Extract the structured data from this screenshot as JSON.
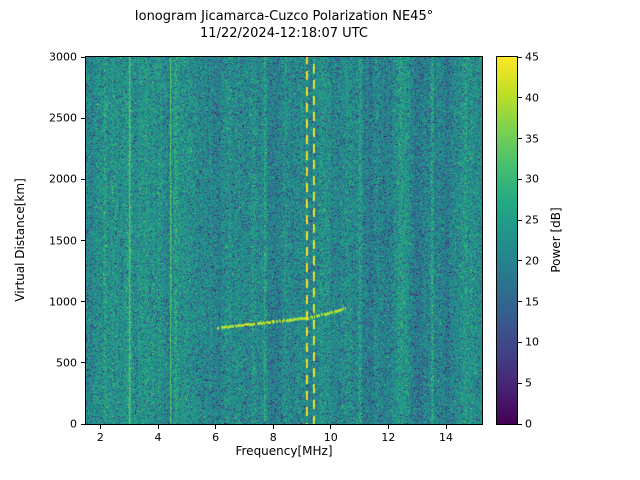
{
  "chart_data": {
    "type": "heatmap",
    "title": "Ionogram Jicamarca-Cuzco Polarization NE45°",
    "subtitle": "11/22/2024-12:18:07 UTC",
    "xlabel": "Frequency[MHz]",
    "ylabel": "Virtual Distance[km]",
    "colorbar_label": "Power [dB]",
    "xlim": [
      1.5,
      15.25
    ],
    "ylim": [
      0,
      3000
    ],
    "clim": [
      0,
      45
    ],
    "xticks": [
      2,
      4,
      6,
      8,
      10,
      12,
      14
    ],
    "yticks": [
      0,
      500,
      1000,
      1500,
      2000,
      2500,
      3000
    ],
    "colorbar_ticks": [
      0,
      5,
      10,
      15,
      20,
      25,
      30,
      35,
      40,
      45
    ],
    "colormap": "viridis",
    "colormap_stops": [
      [
        68,
        1,
        84
      ],
      [
        72,
        36,
        117
      ],
      [
        65,
        68,
        135
      ],
      [
        53,
        95,
        141
      ],
      [
        42,
        120,
        142
      ],
      [
        33,
        145,
        140
      ],
      [
        34,
        168,
        132
      ],
      [
        68,
        190,
        112
      ],
      [
        122,
        209,
        81
      ],
      [
        189,
        223,
        38
      ],
      [
        253,
        231,
        37
      ]
    ],
    "noise_floor_db": {
      "mean": 21,
      "spread": 10
    },
    "interference_lines": [
      {
        "freq_mhz": 2.15,
        "power_db": 26,
        "style": "faint"
      },
      {
        "freq_mhz": 3.0,
        "power_db": 33,
        "style": "solid"
      },
      {
        "freq_mhz": 4.4,
        "power_db": 32,
        "style": "solid"
      },
      {
        "freq_mhz": 4.6,
        "power_db": 27,
        "style": "faint"
      },
      {
        "freq_mhz": 7.7,
        "power_db": 27,
        "style": "faint"
      },
      {
        "freq_mhz": 9.15,
        "power_db": 45,
        "style": "dashed",
        "phase": 2
      },
      {
        "freq_mhz": 9.38,
        "power_db": 45,
        "style": "dashed",
        "phase": 9
      },
      {
        "freq_mhz": 11.0,
        "power_db": 25,
        "style": "faint"
      },
      {
        "freq_mhz": 13.5,
        "power_db": 25,
        "style": "faint"
      }
    ],
    "echo_trace": {
      "power_db": 42,
      "points_mhz_km": [
        [
          6.0,
          790
        ],
        [
          6.5,
          800
        ],
        [
          7.0,
          812
        ],
        [
          7.5,
          826
        ],
        [
          8.0,
          840
        ],
        [
          8.5,
          852
        ],
        [
          9.0,
          865
        ],
        [
          9.4,
          880
        ],
        [
          9.8,
          900
        ],
        [
          10.2,
          925
        ],
        [
          10.5,
          950
        ]
      ]
    }
  }
}
